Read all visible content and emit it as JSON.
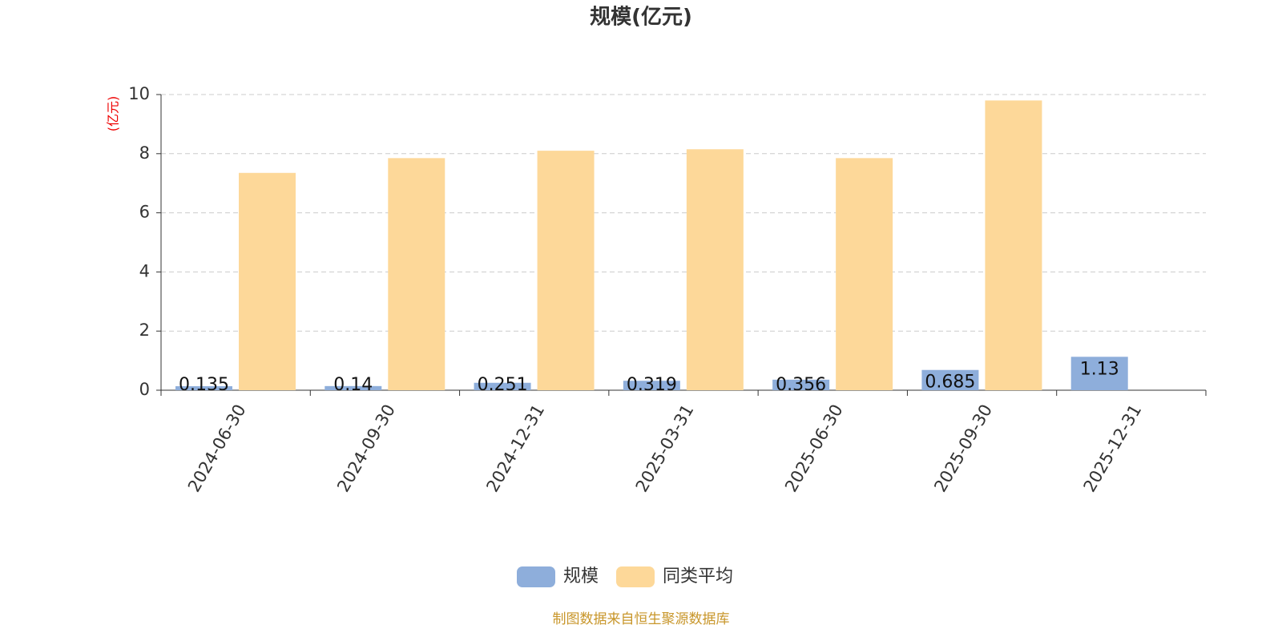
{
  "chart_data": {
    "type": "bar",
    "title": "规模(亿元)",
    "y_label": "(亿元)",
    "categories": [
      "2024-06-30",
      "2024-09-30",
      "2024-12-31",
      "2025-03-31",
      "2025-06-30",
      "2025-09-30",
      "2025-12-31"
    ],
    "series": [
      {
        "name": "规模",
        "color": "#8eaedb",
        "values": [
          0.135,
          0.14,
          0.251,
          0.319,
          0.356,
          0.685,
          1.13
        ]
      },
      {
        "name": "同类平均",
        "color": "#fdd899",
        "values": [
          7.35,
          7.85,
          8.1,
          8.15,
          7.85,
          9.8,
          null
        ]
      }
    ],
    "data_labels_series": 0,
    "ylim": [
      0,
      10
    ],
    "yticks": [
      0,
      2,
      4,
      6,
      8,
      10
    ],
    "grid": true,
    "legend": "bottom",
    "source": "制图数据来自恒生聚源数据库"
  }
}
